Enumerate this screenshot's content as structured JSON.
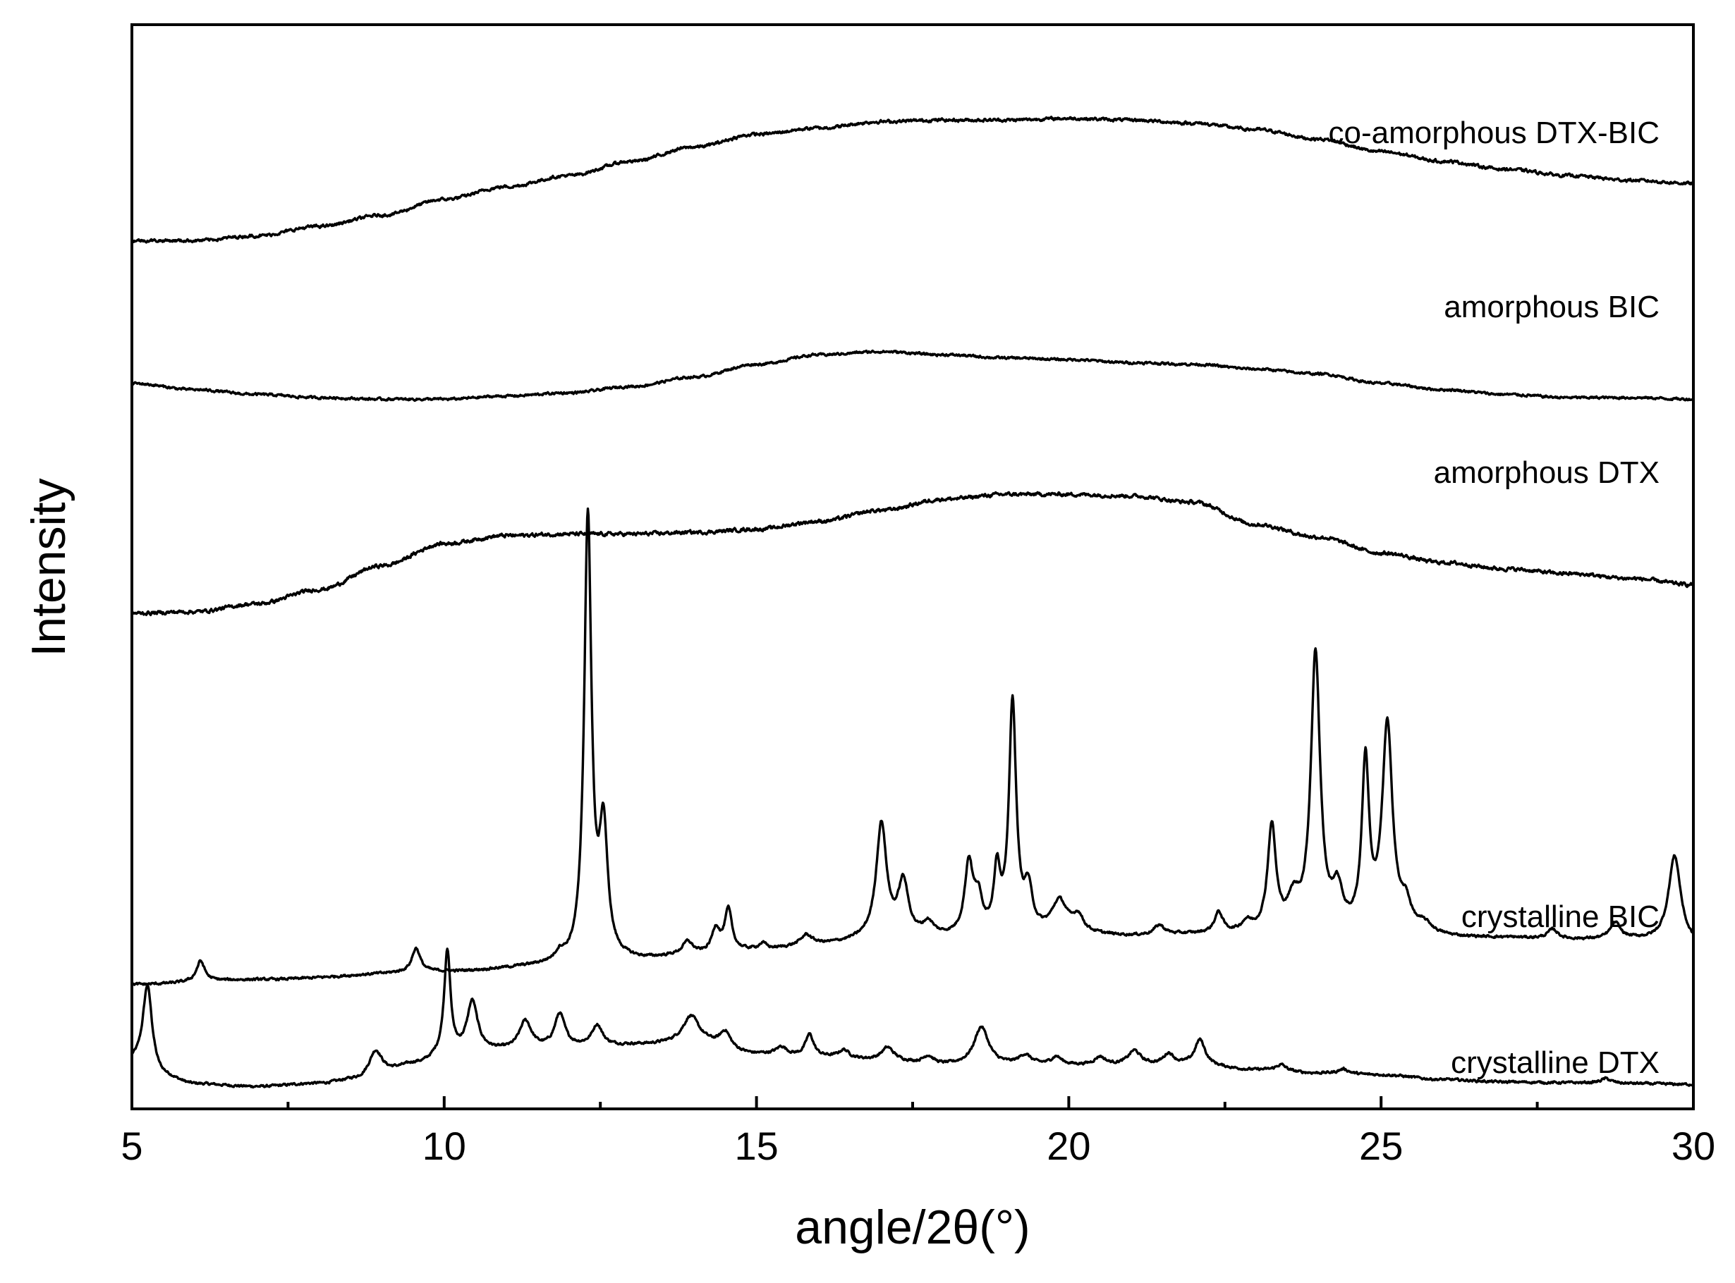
{
  "chart_data": {
    "type": "line",
    "title": "",
    "xlabel": "angle/2θ(°)",
    "ylabel": "Intensity",
    "xlim": [
      5,
      30
    ],
    "x_ticks": [
      5,
      10,
      15,
      20,
      25,
      30
    ],
    "x_tick_labels": [
      "5",
      "10",
      "15",
      "20",
      "25",
      "30"
    ],
    "y_ticks_shown": false,
    "grid": false,
    "legend": "none",
    "line_color": "#000000",
    "y_units": "arbitrary, stacked offsets",
    "series": [
      {
        "name": "crystalline DTX",
        "baseline": [
          [
            5,
            1.6
          ],
          [
            5.5,
            0.7
          ],
          [
            6,
            0.3
          ],
          [
            7,
            0.15
          ],
          [
            8,
            0.35
          ],
          [
            8.6,
            0.6
          ],
          [
            9,
            1.1
          ],
          [
            9.6,
            1.6
          ],
          [
            10,
            2.1
          ],
          [
            10.6,
            2.4
          ],
          [
            11,
            2.4
          ],
          [
            12.5,
            2.7
          ],
          [
            13.2,
            2.8
          ],
          [
            14,
            3.0
          ],
          [
            15,
            2.2
          ],
          [
            16,
            2.0
          ],
          [
            17,
            1.8
          ],
          [
            18,
            1.5
          ],
          [
            19,
            1.5
          ],
          [
            20,
            1.5
          ],
          [
            21,
            1.5
          ],
          [
            22,
            1.5
          ],
          [
            23,
            1.2
          ],
          [
            24,
            1.0
          ],
          [
            25,
            0.9
          ],
          [
            26,
            0.6
          ],
          [
            27,
            0.45
          ],
          [
            28,
            0.4
          ],
          [
            29,
            0.35
          ],
          [
            30,
            0.3
          ]
        ],
        "peaks": [
          [
            5.25,
            5.4,
            0.09
          ],
          [
            8.9,
            1.4,
            0.12
          ],
          [
            10.05,
            6.6,
            0.06
          ],
          [
            10.45,
            3.1,
            0.1
          ],
          [
            11.3,
            1.8,
            0.12
          ],
          [
            11.85,
            2.1,
            0.1
          ],
          [
            12.45,
            1.3,
            0.1
          ],
          [
            13.95,
            1.6,
            0.15
          ],
          [
            14.5,
            1.0,
            0.1
          ],
          [
            15.4,
            0.5,
            0.1
          ],
          [
            15.85,
            1.4,
            0.08
          ],
          [
            16.4,
            0.5,
            0.1
          ],
          [
            17.1,
            0.8,
            0.12
          ],
          [
            17.75,
            0.5,
            0.1
          ],
          [
            18.6,
            2.4,
            0.14
          ],
          [
            19.3,
            0.6,
            0.12
          ],
          [
            19.8,
            0.5,
            0.1
          ],
          [
            20.5,
            0.5,
            0.1
          ],
          [
            21.05,
            0.9,
            0.12
          ],
          [
            21.6,
            0.7,
            0.1
          ],
          [
            22.1,
            1.6,
            0.1
          ],
          [
            23.4,
            0.4,
            0.1
          ],
          [
            24.4,
            0.3,
            0.1
          ],
          [
            28.6,
            0.3,
            0.1
          ]
        ],
        "offset": 0,
        "noise": 0.12,
        "label": "crystalline DTX"
      },
      {
        "name": "crystalline BIC",
        "baseline": [
          [
            5,
            0.2
          ],
          [
            7,
            0.5
          ],
          [
            10,
            1.0
          ],
          [
            12,
            1.4
          ],
          [
            13,
            1.7
          ],
          [
            14,
            2.0
          ],
          [
            15,
            2.3
          ],
          [
            16,
            2.7
          ],
          [
            17,
            3.0
          ],
          [
            18,
            3.1
          ],
          [
            19,
            3.2
          ],
          [
            20,
            3.3
          ],
          [
            21,
            3.2
          ],
          [
            22,
            3.3
          ],
          [
            23,
            3.3
          ],
          [
            24,
            3.2
          ],
          [
            25,
            3.2
          ],
          [
            26,
            3.1
          ],
          [
            27,
            3.1
          ],
          [
            28,
            3.0
          ],
          [
            29,
            3.0
          ],
          [
            30,
            2.6
          ]
        ],
        "peaks": [
          [
            6.1,
            1.3,
            0.08
          ],
          [
            9.55,
            1.5,
            0.08
          ],
          [
            11.85,
            0.5,
            0.08
          ],
          [
            12.3,
            28.0,
            0.07
          ],
          [
            12.55,
            8.0,
            0.08
          ],
          [
            13.9,
            0.8,
            0.1
          ],
          [
            14.35,
            1.5,
            0.08
          ],
          [
            14.55,
            2.6,
            0.07
          ],
          [
            15.1,
            0.4,
            0.08
          ],
          [
            15.8,
            0.6,
            0.1
          ],
          [
            17.0,
            7.2,
            0.1
          ],
          [
            17.35,
            3.4,
            0.1
          ],
          [
            17.75,
            0.8,
            0.1
          ],
          [
            18.4,
            4.4,
            0.08
          ],
          [
            18.55,
            2.0,
            0.08
          ],
          [
            18.85,
            3.8,
            0.06
          ],
          [
            19.1,
            14.5,
            0.07
          ],
          [
            19.35,
            2.6,
            0.08
          ],
          [
            19.85,
            2.0,
            0.15
          ],
          [
            20.15,
            1.0,
            0.1
          ],
          [
            21.45,
            0.6,
            0.1
          ],
          [
            22.4,
            1.3,
            0.08
          ],
          [
            22.85,
            0.6,
            0.1
          ],
          [
            23.25,
            6.6,
            0.08
          ],
          [
            23.6,
            1.8,
            0.12
          ],
          [
            23.95,
            17.5,
            0.09
          ],
          [
            24.3,
            2.4,
            0.1
          ],
          [
            24.75,
            10.5,
            0.07
          ],
          [
            25.1,
            13.0,
            0.1
          ],
          [
            25.4,
            1.5,
            0.1
          ],
          [
            25.7,
            0.6,
            0.15
          ],
          [
            27.75,
            0.6,
            0.1
          ],
          [
            28.75,
            1.0,
            0.1
          ],
          [
            29.7,
            5.6,
            0.12
          ]
        ],
        "offset": 6.4,
        "noise": 0.12,
        "label": "crystalline BIC"
      },
      {
        "name": "amorphous DTX",
        "baseline": [
          [
            5,
            0
          ],
          [
            6,
            0.1
          ],
          [
            7,
            0.6
          ],
          [
            8,
            1.5
          ],
          [
            9,
            3.0
          ],
          [
            10,
            4.4
          ],
          [
            11,
            4.9
          ],
          [
            12,
            5.0
          ],
          [
            13,
            5.0
          ],
          [
            14,
            5.1
          ],
          [
            15,
            5.3
          ],
          [
            16,
            5.8
          ],
          [
            17,
            6.5
          ],
          [
            18,
            7.2
          ],
          [
            19,
            7.5
          ],
          [
            20,
            7.5
          ],
          [
            21,
            7.4
          ],
          [
            22,
            7.0
          ],
          [
            23,
            5.6
          ],
          [
            24,
            4.8
          ],
          [
            25,
            3.8
          ],
          [
            26,
            3.2
          ],
          [
            27,
            2.8
          ],
          [
            28,
            2.5
          ],
          [
            29,
            2.2
          ],
          [
            30,
            1.8
          ]
        ],
        "peaks": [],
        "offset": 30.0,
        "noise": 0.18,
        "label": "amorphous DTX"
      },
      {
        "name": "amorphous BIC",
        "baseline": [
          [
            5,
            1.0
          ],
          [
            6,
            0.6
          ],
          [
            7,
            0.3
          ],
          [
            8,
            0.1
          ],
          [
            9,
            0
          ],
          [
            10,
            0
          ],
          [
            11,
            0.2
          ],
          [
            12,
            0.4
          ],
          [
            13,
            0.8
          ],
          [
            14,
            1.4
          ],
          [
            15,
            2.2
          ],
          [
            16,
            2.8
          ],
          [
            17,
            3.0
          ],
          [
            18,
            2.8
          ],
          [
            19,
            2.6
          ],
          [
            20,
            2.5
          ],
          [
            21,
            2.3
          ],
          [
            22,
            2.2
          ],
          [
            23,
            1.9
          ],
          [
            24,
            1.6
          ],
          [
            25,
            1.0
          ],
          [
            26,
            0.6
          ],
          [
            27,
            0.3
          ],
          [
            28,
            0.1
          ],
          [
            29,
            0.1
          ],
          [
            30,
            0
          ]
        ],
        "peaks": [],
        "offset": 43.5,
        "noise": 0.12,
        "label": "amorphous BIC"
      },
      {
        "name": "co-amorphous DTX-BIC",
        "baseline": [
          [
            5,
            0
          ],
          [
            6,
            0
          ],
          [
            7,
            0.3
          ],
          [
            8,
            0.9
          ],
          [
            9,
            1.6
          ],
          [
            10,
            2.6
          ],
          [
            11,
            3.4
          ],
          [
            12,
            4.1
          ],
          [
            13,
            5.0
          ],
          [
            14,
            5.9
          ],
          [
            15,
            6.7
          ],
          [
            16,
            7.1
          ],
          [
            17,
            7.5
          ],
          [
            18,
            7.6
          ],
          [
            19,
            7.6
          ],
          [
            20,
            7.7
          ],
          [
            21,
            7.6
          ],
          [
            22,
            7.4
          ],
          [
            23,
            7.0
          ],
          [
            24,
            6.4
          ],
          [
            25,
            5.6
          ],
          [
            26,
            5.0
          ],
          [
            27,
            4.5
          ],
          [
            28,
            4.1
          ],
          [
            29,
            3.8
          ],
          [
            30,
            3.6
          ]
        ],
        "peaks": [],
        "offset": 53.5,
        "noise": 0.15,
        "label": "co-amorphous DTX-BIC"
      }
    ]
  }
}
